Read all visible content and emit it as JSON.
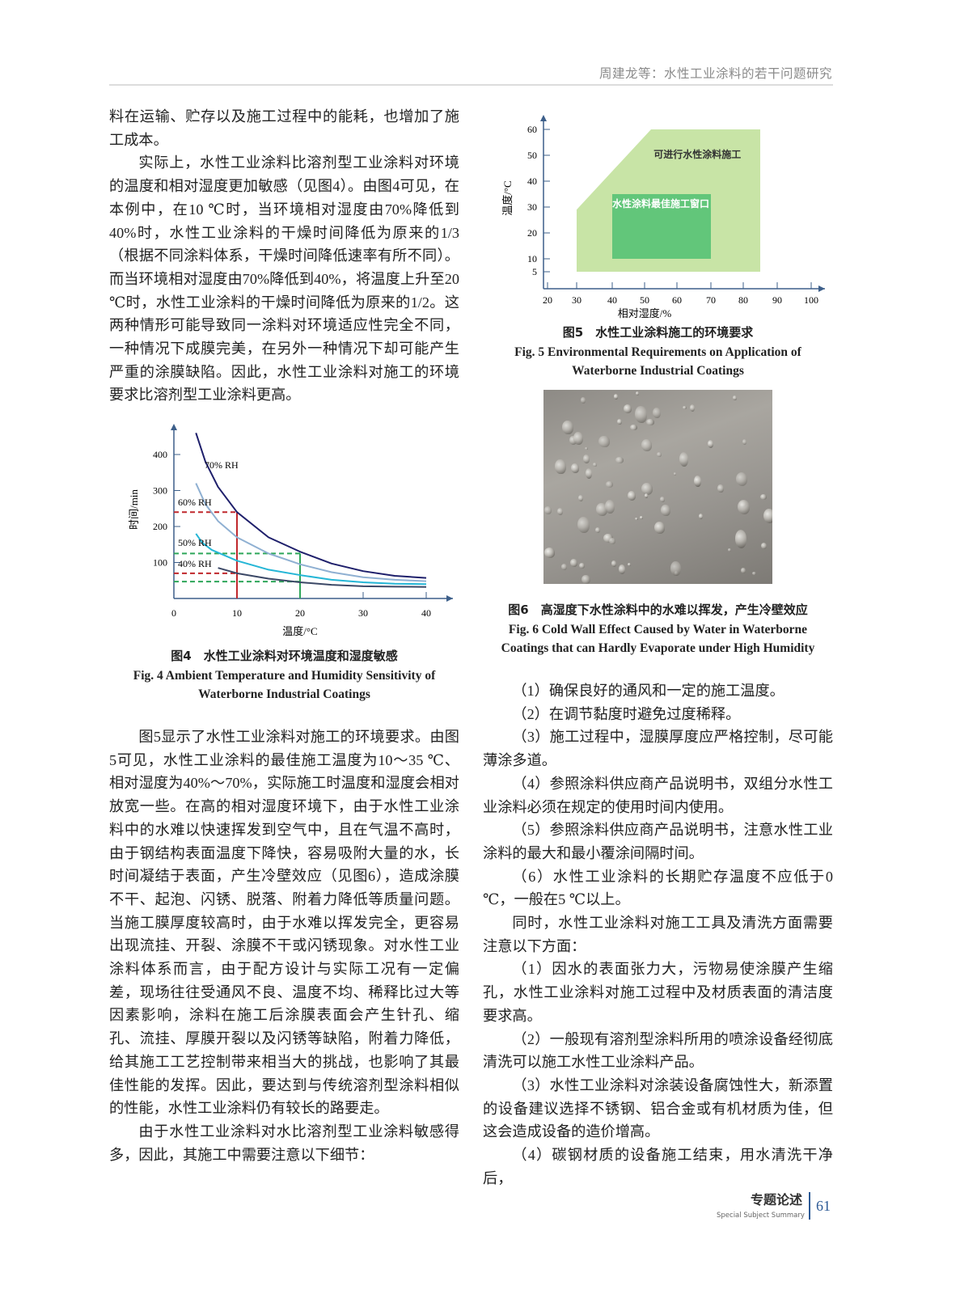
{
  "header": {
    "running_title": "周建龙等：水性工业涂料的若干问题研究"
  },
  "left_column": {
    "top_paragraphs": [
      "料在运输、贮存以及施工过程中的能耗，也增加了施工成本。",
      "实际上，水性工业涂料比溶剂型工业涂料对环境的温度和相对湿度更加敏感（见图4）。由图4可见，在本例中，在10 ℃时，当环境相对湿度由70%降低到40%时，水性工业涂料的干燥时间降低为原来的1/3（根据不同涂料体系，干燥时间降低速率有所不同）。而当环境相对湿度由70%降低到40%，将温度上升至20 ℃时，水性工业涂料的干燥时间降低为原来的1/2。这两种情形可能导致同一涂料对环境适应性完全不同，一种情况下成膜完美，在另外一种情况下却可能产生严重的涂膜缺陷。因此，水性工业涂料对施工的环境要求比溶剂型工业涂料更高。"
    ],
    "bottom_paragraphs": [
      "图5显示了水性工业涂料对施工的环境要求。由图5可见，水性工业涂料的最佳施工温度为10～35 ℃、相对湿度为40%～70%，实际施工时温度和湿度会相对放宽一些。在高的相对湿度环境下，由于水性工业涂料中的水难以快速挥发到空气中，且在气温不高时，由于钢结构表面温度下降快，容易吸附大量的水，长时间凝结于表面，产生冷壁效应（见图6），造成涂膜不干、起泡、闪锈、脱落、附着力降低等质量问题。当施工膜厚度较高时，由于水难以挥发完全，更容易出现流挂、开裂、涂膜不干或闪锈现象。对水性工业涂料体系而言，由于配方设计与实际工况有一定偏差，现场往往受通风不良、温度不均、稀释比过大等因素影响，涂料在施工后涂膜表面会产生针孔、缩孔、流挂、厚膜开裂以及闪锈等缺陷，附着力降低，给其施工工艺控制带来相当大的挑战，也影响了其最佳性能的发挥。因此，要达到与传统溶剂型涂料相似的性能，水性工业涂料仍有较长的路要走。",
      "由于水性工业涂料对水比溶剂型工业涂料敏感得多，因此，其施工中需要注意以下细节："
    ]
  },
  "right_column": {
    "paragraphs": [
      "（1）确保良好的通风和一定的施工温度。",
      "（2）在调节黏度时避免过度稀释。",
      "（3）施工过程中，湿膜厚度应严格控制，尽可能薄涂多道。",
      "（4）参照涂料供应商产品说明书，双组分水性工业涂料必须在规定的使用时间内使用。",
      "（5）参照涂料供应商产品说明书，注意水性工业涂料的最大和最小覆涂间隔时间。",
      "（6）水性工业涂料的长期贮存温度不应低于0 ℃，一般在5 ℃以上。",
      "同时，水性工业涂料对施工工具及清洗方面需要注意以下方面：",
      "（1）因水的表面张力大，污物易使涂膜产生缩孔，水性工业涂料对施工过程中及材质表面的清洁度要求高。",
      "（2）一般现有溶剂型涂料所用的喷涂设备经彻底清洗可以施工水性工业涂料产品。",
      "（3）水性工业涂料对涂装设备腐蚀性大，新添置的设备建议选择不锈钢、铝合金或有机材质为佳，但这会造成设备的造价增高。",
      "（4）碳钢材质的设备施工结束，用水清洗干净后，"
    ]
  },
  "figures": {
    "fig4": {
      "caption_cn": "图4　水性工业涂料对环境温度和湿度敏感",
      "caption_en_1": "Fig. 4   Ambient Temperature and Humidity Sensitivity of",
      "caption_en_2": "Waterborne Industrial Coatings"
    },
    "fig5": {
      "caption_cn": "图5　水性工业涂料施工的环境要求",
      "caption_en_1": "Fig. 5   Environmental Requirements on Application of",
      "caption_en_2": "Waterborne Industrial Coatings"
    },
    "fig6": {
      "caption_cn": "图6　高湿度下水性涂料中的水难以挥发，产生冷壁效应",
      "caption_en_1": "Fig. 6   Cold Wall Effect Caused by Water in Waterborne",
      "caption_en_2": "Coatings that can Hardly Evaporate under High Humidity",
      "image": "water-droplets-on-surface-photo"
    }
  },
  "chart_data": [
    {
      "type": "line",
      "xlabel": "温度/°C",
      "ylabel": "时间/min",
      "xlim": [
        0,
        40
      ],
      "ylim": [
        0,
        460
      ],
      "xticks": [
        0,
        10,
        20,
        30,
        40
      ],
      "yticks": [
        100,
        200,
        300,
        400
      ],
      "grid": false,
      "series": [
        {
          "name": "70% RH",
          "color": "#1e1f6b",
          "points": [
            [
              3.5,
              460
            ],
            [
              5,
              380
            ],
            [
              7,
              310
            ],
            [
              10,
              240
            ],
            [
              15,
              170
            ],
            [
              20,
              130
            ],
            [
              25,
              97
            ],
            [
              30,
              76
            ],
            [
              35,
              63
            ],
            [
              40,
              57
            ]
          ]
        },
        {
          "name": "60% RH",
          "color": "#8fb0d2",
          "points": [
            [
              3.5,
              320
            ],
            [
              5,
              262
            ],
            [
              7,
              215
            ],
            [
              10,
              170
            ],
            [
              15,
              125
            ],
            [
              20,
              95
            ],
            [
              25,
              73
            ],
            [
              30,
              59
            ],
            [
              35,
              52
            ],
            [
              40,
              48
            ]
          ]
        },
        {
          "name": "50% RH",
          "color": "#25b6d6",
          "points": [
            [
              3.5,
              180
            ],
            [
              4.5,
              155
            ],
            [
              6,
              135
            ],
            [
              10,
              105
            ],
            [
              15,
              80
            ],
            [
              20,
              65
            ],
            [
              25,
              52
            ],
            [
              30,
              45
            ],
            [
              35,
              41
            ],
            [
              40,
              40
            ]
          ]
        },
        {
          "name": "40% RH",
          "color": "#3b4866",
          "points": [
            [
              7,
              85
            ],
            [
              10,
              70
            ],
            [
              15,
              55
            ],
            [
              20,
              45
            ],
            [
              25,
              38
            ],
            [
              30,
              34
            ],
            [
              35,
              33
            ],
            [
              40,
              32
            ]
          ]
        }
      ],
      "reference_lines": [
        {
          "color": "#c0282d",
          "x": 10,
          "y_levels": [
            240,
            70
          ]
        },
        {
          "color": "#2fa65a",
          "x": 20,
          "y_levels": [
            125,
            47
          ]
        }
      ]
    },
    {
      "type": "area",
      "xlabel": "相对湿度/%",
      "ylabel": "温度/°C",
      "xticks": [
        20,
        30,
        40,
        50,
        60,
        70,
        80,
        90,
        100
      ],
      "yticks": [
        5,
        10,
        20,
        30,
        40,
        50,
        60
      ],
      "grid": false,
      "regions": [
        {
          "label": "可进行水性涂料施工",
          "color": "#c8e4a6",
          "polygon": [
            [
              30,
              5
            ],
            [
              30,
              29
            ],
            [
              52,
              60
            ],
            [
              85,
              60
            ],
            [
              85,
              5
            ]
          ]
        },
        {
          "label": "水性涂料最佳施工窗口",
          "color": "#62c67a",
          "polygon": [
            [
              40,
              10
            ],
            [
              40,
              35
            ],
            [
              70,
              35
            ],
            [
              70,
              10
            ]
          ]
        }
      ]
    }
  ],
  "footer": {
    "section_cn": "专题论述",
    "section_en": "Special Subject Summary",
    "page_number": "61",
    "accent": "#2d5a96"
  }
}
